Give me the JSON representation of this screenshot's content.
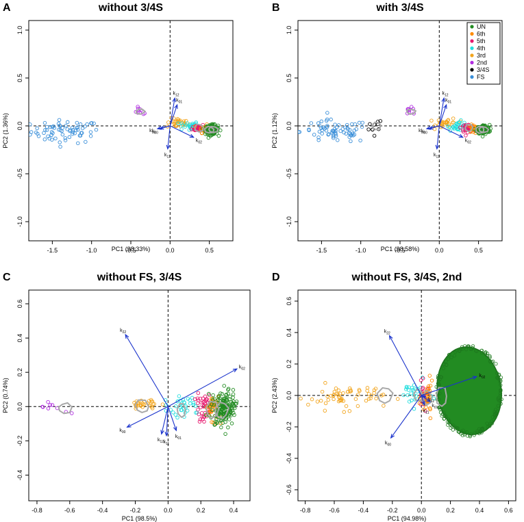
{
  "figure": {
    "colors": {
      "UN": "#228b22",
      "6th": "#ff8c00",
      "5th": "#e6196e",
      "4th": "#22dede",
      "3rd": "#f2a51e",
      "2nd": "#b02ce0",
      "3/4S": "#000000",
      "FS": "#3a8fd9",
      "contour": "#a8a8a8",
      "arrow": "#1a33cc",
      "axis": "#000000"
    },
    "legend": [
      "UN",
      "6th",
      "5th",
      "4th",
      "3rd",
      "2nd",
      "3/4S",
      "FS"
    ]
  },
  "chart_data": [
    {
      "type": "scatter",
      "panel": "A",
      "title": "without 3/4S",
      "xlabel": "PC1 (98.33%)",
      "ylabel": "PC2 (1.36%)",
      "xlim": [
        -1.8,
        0.8
      ],
      "ylim": [
        -1.2,
        1.1
      ],
      "xticks": [
        -1.5,
        -1.0,
        -0.5,
        0.0,
        0.5
      ],
      "xtick_labels": [
        "-1.5",
        "-1.0",
        "-0.5",
        "0.0",
        "0.5"
      ],
      "yticks": [
        -1.0,
        -0.5,
        0.0,
        0.5,
        1.0
      ],
      "ytick_labels": [
        "-1.0",
        "-0.5",
        "0.0",
        "0.5",
        "1.0"
      ],
      "groups": [
        {
          "name": "FS",
          "cx": -1.33,
          "cy": -0.06,
          "sx": 0.22,
          "sy": 0.06,
          "n": 70
        },
        {
          "name": "2nd",
          "cx": -0.38,
          "cy": 0.15,
          "sx": 0.05,
          "sy": 0.02,
          "n": 9
        },
        {
          "name": "3rd",
          "cx": 0.1,
          "cy": 0.03,
          "sx": 0.07,
          "sy": 0.025,
          "n": 30
        },
        {
          "name": "4th",
          "cx": 0.24,
          "cy": 0.0,
          "sx": 0.06,
          "sy": 0.025,
          "n": 30
        },
        {
          "name": "5th",
          "cx": 0.36,
          "cy": -0.02,
          "sx": 0.04,
          "sy": 0.02,
          "n": 30
        },
        {
          "name": "6th",
          "cx": 0.44,
          "cy": -0.03,
          "sx": 0.035,
          "sy": 0.02,
          "n": 30
        },
        {
          "name": "UN",
          "cx": 0.53,
          "cy": -0.04,
          "sx": 0.04,
          "sy": 0.025,
          "n": 140
        }
      ],
      "contours": [
        {
          "cx": -0.38,
          "cy": 0.15,
          "rx": 0.06,
          "ry": 0.03
        },
        {
          "cx": 0.37,
          "cy": -0.02,
          "rx": 0.06,
          "ry": 0.04
        },
        {
          "cx": 0.5,
          "cy": -0.04,
          "rx": 0.06,
          "ry": 0.035
        },
        {
          "cx": 0.55,
          "cy": -0.04,
          "rx": 0.06,
          "ry": 0.035
        }
      ],
      "arrows": [
        {
          "label": "k12",
          "x": 0.06,
          "y": 0.29
        },
        {
          "label": "k01",
          "x": 0.09,
          "y": 0.22
        },
        {
          "label": "k02",
          "x": 0.3,
          "y": -0.12
        },
        {
          "label": "k11",
          "x": -0.03,
          "y": -0.24
        },
        {
          "label": "k10",
          "x": -0.16,
          "y": -0.03
        },
        {
          "label": "k00",
          "x": -0.13,
          "y": -0.03
        }
      ]
    },
    {
      "type": "scatter",
      "panel": "B",
      "title": "with 3/4S",
      "xlabel": "PC1 (98.58%)",
      "ylabel": "PC2 (1.12%)",
      "xlim": [
        -1.8,
        0.8
      ],
      "ylim": [
        -1.2,
        1.1
      ],
      "xticks": [
        -1.5,
        -1.0,
        -0.5,
        0.0,
        0.5
      ],
      "xtick_labels": [
        "-1.5",
        "-1.0",
        "-0.5",
        "0.0",
        "0.5"
      ],
      "yticks": [
        -1.0,
        -0.5,
        0.0,
        0.5,
        1.0
      ],
      "ytick_labels": [
        "-1.0",
        "-0.5",
        "0.0",
        "0.5",
        "1.0"
      ],
      "legend_position": "top-right",
      "groups": [
        {
          "name": "FS",
          "cx": -1.33,
          "cy": -0.06,
          "sx": 0.22,
          "sy": 0.06,
          "n": 70
        },
        {
          "name": "3/4S",
          "cx": -0.84,
          "cy": -0.02,
          "sx": 0.06,
          "sy": 0.05,
          "n": 10
        },
        {
          "name": "2nd",
          "cx": -0.37,
          "cy": 0.15,
          "sx": 0.05,
          "sy": 0.02,
          "n": 9
        },
        {
          "name": "3rd",
          "cx": 0.1,
          "cy": 0.03,
          "sx": 0.07,
          "sy": 0.025,
          "n": 30
        },
        {
          "name": "4th",
          "cx": 0.24,
          "cy": 0.0,
          "sx": 0.06,
          "sy": 0.025,
          "n": 30
        },
        {
          "name": "5th",
          "cx": 0.36,
          "cy": -0.02,
          "sx": 0.04,
          "sy": 0.02,
          "n": 30
        },
        {
          "name": "6th",
          "cx": 0.44,
          "cy": -0.03,
          "sx": 0.035,
          "sy": 0.02,
          "n": 30
        },
        {
          "name": "UN",
          "cx": 0.56,
          "cy": -0.04,
          "sx": 0.04,
          "sy": 0.025,
          "n": 140
        }
      ],
      "contours": [
        {
          "cx": -0.8,
          "cy": 0.0,
          "rx": 0.05,
          "ry": 0.04
        },
        {
          "cx": -0.36,
          "cy": 0.15,
          "rx": 0.06,
          "ry": 0.03
        },
        {
          "cx": 0.38,
          "cy": -0.02,
          "rx": 0.06,
          "ry": 0.04
        },
        {
          "cx": 0.52,
          "cy": -0.04,
          "rx": 0.06,
          "ry": 0.035
        },
        {
          "cx": 0.57,
          "cy": -0.04,
          "rx": 0.06,
          "ry": 0.035
        }
      ],
      "arrows": [
        {
          "label": "k12",
          "x": 0.06,
          "y": 0.29
        },
        {
          "label": "k01",
          "x": 0.09,
          "y": 0.22
        },
        {
          "label": "k02",
          "x": 0.3,
          "y": -0.12
        },
        {
          "label": "k11",
          "x": -0.03,
          "y": -0.24
        },
        {
          "label": "k10",
          "x": -0.16,
          "y": -0.03
        },
        {
          "label": "k00",
          "x": -0.13,
          "y": -0.03
        }
      ]
    },
    {
      "type": "scatter",
      "panel": "C",
      "title": "without FS, 3/4S",
      "xlabel": "PC1 (98.5%)",
      "ylabel": "PC2 (0.74%)",
      "xlim": [
        -0.85,
        0.5
      ],
      "ylim": [
        -0.55,
        0.68
      ],
      "xticks": [
        -0.8,
        -0.6,
        -0.4,
        -0.2,
        0.0,
        0.2,
        0.4
      ],
      "xtick_labels": [
        "-0.8",
        "-0.6",
        "-0.4",
        "-0.2",
        "0.0",
        "0.2",
        "0.4"
      ],
      "yticks": [
        -0.4,
        -0.2,
        0.0,
        0.2,
        0.4,
        0.6
      ],
      "ytick_labels": [
        "-0.4",
        "-0.2",
        "0.0",
        "0.2",
        "0.4",
        "0.6"
      ],
      "groups": [
        {
          "name": "2nd",
          "cx": -0.65,
          "cy": -0.01,
          "sx": 0.06,
          "sy": 0.02,
          "n": 9
        },
        {
          "name": "3rd",
          "cx": -0.15,
          "cy": 0.01,
          "sx": 0.05,
          "sy": 0.02,
          "n": 30
        },
        {
          "name": "4th",
          "cx": 0.08,
          "cy": -0.01,
          "sx": 0.05,
          "sy": 0.03,
          "n": 35
        },
        {
          "name": "5th",
          "cx": 0.22,
          "cy": -0.01,
          "sx": 0.025,
          "sy": 0.04,
          "n": 40
        },
        {
          "name": "6th",
          "cx": 0.27,
          "cy": -0.01,
          "sx": 0.025,
          "sy": 0.04,
          "n": 40
        },
        {
          "name": "UN",
          "cx": 0.34,
          "cy": -0.01,
          "sx": 0.035,
          "sy": 0.05,
          "n": 170
        }
      ],
      "contours": [
        {
          "cx": -0.63,
          "cy": -0.01,
          "rx": 0.04,
          "ry": 0.03
        },
        {
          "cx": -0.16,
          "cy": 0.0,
          "rx": 0.04,
          "ry": 0.04
        },
        {
          "cx": 0.08,
          "cy": -0.02,
          "rx": 0.03,
          "ry": 0.04
        },
        {
          "cx": 0.27,
          "cy": -0.02,
          "rx": 0.04,
          "ry": 0.06
        },
        {
          "cx": 0.33,
          "cy": -0.02,
          "rx": 0.04,
          "ry": 0.05
        }
      ],
      "arrows": [
        {
          "label": "k22",
          "x": -0.26,
          "y": 0.42
        },
        {
          "label": "k02",
          "x": 0.42,
          "y": 0.22
        },
        {
          "label": "k00",
          "x": -0.25,
          "y": -0.12
        },
        {
          "label": "k12",
          "x": -0.04,
          "y": -0.16
        },
        {
          "label": "k01",
          "x": 0.05,
          "y": -0.14
        },
        {
          "label": "k11",
          "x": -0.01,
          "y": -0.17
        }
      ]
    },
    {
      "type": "scatter",
      "panel": "D",
      "title": "without FS, 3/4S, 2nd",
      "xlabel": "PC1 (94.98%)",
      "ylabel": "PC2 (2.43%)",
      "xlim": [
        -0.85,
        0.65
      ],
      "ylim": [
        -0.67,
        0.67
      ],
      "xticks": [
        -0.8,
        -0.6,
        -0.4,
        -0.2,
        0.0,
        0.2,
        0.4,
        0.6
      ],
      "xtick_labels": [
        "-0.8",
        "-0.6",
        "-0.4",
        "-0.2",
        "0.0",
        "0.2",
        "0.4",
        "0.6"
      ],
      "yticks": [
        -0.6,
        -0.4,
        -0.2,
        0.0,
        0.2,
        0.4,
        0.6
      ],
      "ytick_labels": [
        "-0.6",
        "-0.4",
        "-0.2",
        "0.0",
        "0.2",
        "0.4",
        "0.6"
      ],
      "groups": [
        {
          "name": "3rd",
          "cx": -0.52,
          "cy": -0.01,
          "sx": 0.13,
          "sy": 0.04,
          "n": 60
        },
        {
          "name": "4th",
          "cx": -0.05,
          "cy": 0.01,
          "sx": 0.05,
          "sy": 0.04,
          "n": 30
        },
        {
          "name": "5th",
          "cx": 0.02,
          "cy": 0.0,
          "sx": 0.02,
          "sy": 0.04,
          "n": 30
        },
        {
          "name": "6th",
          "cx": 0.04,
          "cy": -0.02,
          "sx": 0.02,
          "sy": 0.05,
          "n": 40
        }
      ],
      "un_blob": {
        "cx": 0.33,
        "cy": 0.03,
        "rx": 0.22,
        "ry": 0.28
      },
      "contours": [
        {
          "cx": -0.25,
          "cy": 0.0,
          "rx": 0.05,
          "ry": 0.06
        },
        {
          "cx": -0.02,
          "cy": 0.0,
          "rx": 0.03,
          "ry": 0.04
        },
        {
          "cx": 0.04,
          "cy": -0.01,
          "rx": 0.03,
          "ry": 0.05
        },
        {
          "cx": 0.14,
          "cy": -0.01,
          "rx": 0.04,
          "ry": 0.06
        }
      ],
      "arrows": [
        {
          "label": "k22",
          "x": -0.22,
          "y": 0.38
        },
        {
          "label": "k02",
          "x": 0.38,
          "y": 0.12
        },
        {
          "label": "k00",
          "x": -0.21,
          "y": -0.27
        },
        {
          "label": "k12",
          "x": 0.03,
          "y": -0.01
        },
        {
          "label": "k01",
          "x": 0.06,
          "y": -0.04
        },
        {
          "label": "k11",
          "x": 0.02,
          "y": -0.06
        }
      ]
    }
  ]
}
